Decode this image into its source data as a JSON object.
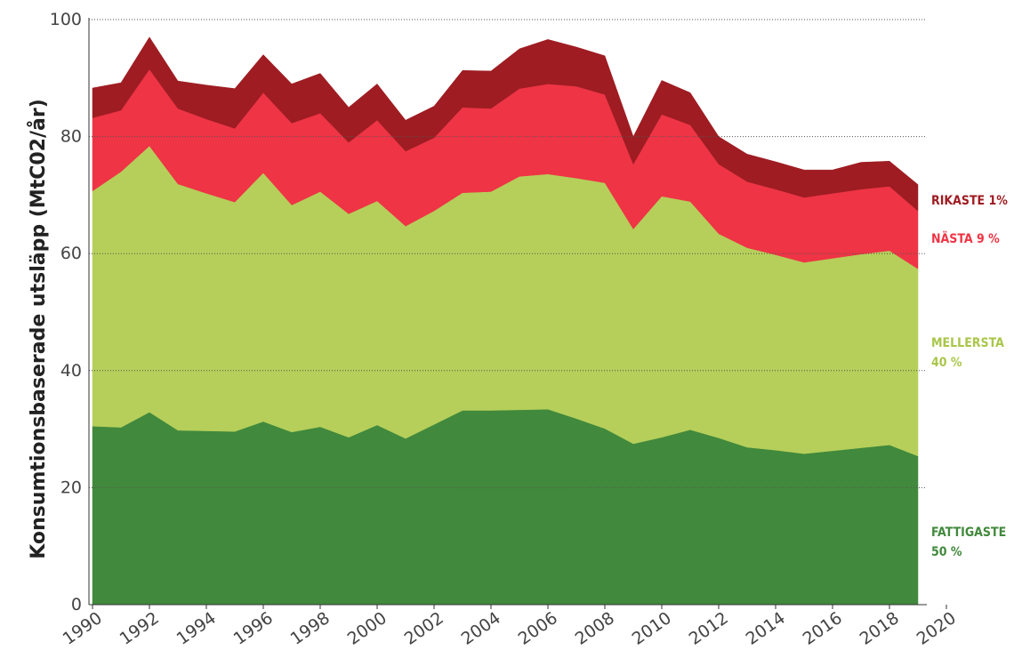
{
  "chart_data": {
    "type": "stacked_area",
    "y_label": "Konsumtionsbaserade utsläpp (MtC02/år)",
    "x": [
      1990,
      1991,
      1992,
      1993,
      1994,
      1995,
      1996,
      1997,
      1998,
      1999,
      2000,
      2001,
      2002,
      2003,
      2004,
      2005,
      2006,
      2007,
      2008,
      2009,
      2010,
      2011,
      2012,
      2013,
      2014,
      2015,
      2016,
      2017,
      2018,
      2019
    ],
    "xlim": [
      1990,
      2020
    ],
    "xticks": [
      1990,
      1992,
      1994,
      1996,
      1998,
      2000,
      2002,
      2004,
      2006,
      2008,
      2010,
      2012,
      2014,
      2016,
      2018,
      2020
    ],
    "ylim": [
      0,
      100
    ],
    "yticks": [
      0,
      20,
      40,
      60,
      80,
      100
    ],
    "grid": true,
    "series": [
      {
        "name": "FATTIGASTE 50 %",
        "color": "#41893c",
        "values": [
          30.5,
          30.3,
          32.9,
          29.8,
          29.7,
          29.6,
          31.3,
          29.5,
          30.4,
          28.6,
          30.7,
          28.4,
          30.8,
          33.2,
          33.2,
          33.3,
          33.4,
          31.8,
          30.1,
          27.5,
          28.6,
          29.9,
          28.5,
          26.9,
          26.4,
          25.8,
          26.3,
          26.8,
          27.3,
          25.4
        ]
      },
      {
        "name": "MELLERSTA 40 %",
        "color": "#b5cf5a",
        "values": [
          40.2,
          43.7,
          45.5,
          42.1,
          40.6,
          39.2,
          42.5,
          38.8,
          40.2,
          38.2,
          38.3,
          36.3,
          36.5,
          37.2,
          37.4,
          39.9,
          40.2,
          41.1,
          42.0,
          36.7,
          41.2,
          39.0,
          34.9,
          34.1,
          33.4,
          32.7,
          32.9,
          33.1,
          33.2,
          32.0
        ]
      },
      {
        "name": "NÄSTA 9 %",
        "color": "#ee3445",
        "values": [
          12.5,
          10.5,
          13.1,
          12.9,
          12.7,
          12.6,
          13.7,
          14.0,
          13.4,
          12.2,
          13.8,
          12.8,
          12.5,
          14.6,
          14.2,
          15.0,
          15.4,
          15.7,
          15.1,
          11.1,
          14.0,
          13.1,
          11.9,
          11.3,
          11.2,
          11.1,
          11.1,
          11.1,
          11.0,
          9.9
        ]
      },
      {
        "name": "RIKASTE 1%",
        "color": "#9e1c22",
        "values": [
          5.1,
          4.7,
          5.5,
          4.7,
          5.8,
          6.8,
          6.5,
          6.7,
          6.8,
          6.0,
          6.2,
          5.3,
          5.4,
          6.3,
          6.4,
          6.8,
          7.6,
          6.7,
          6.6,
          4.7,
          5.8,
          5.5,
          4.7,
          4.7,
          4.7,
          4.7,
          4.0,
          4.6,
          4.3,
          4.5
        ]
      }
    ]
  }
}
